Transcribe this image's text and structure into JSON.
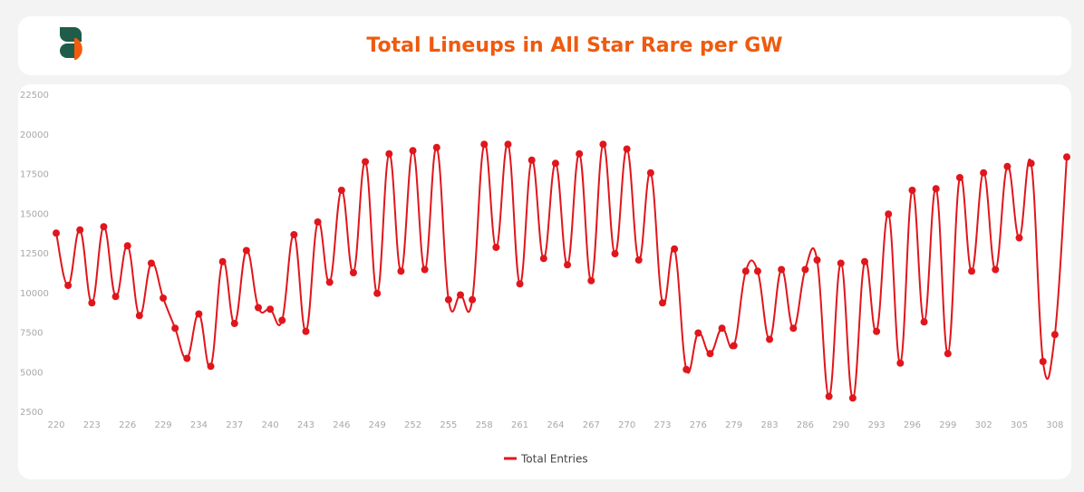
{
  "chart_data": {
    "type": "line",
    "title": "Total Lineups in All Star Rare per GW",
    "categories": [
      "220",
      null,
      null,
      "223",
      null,
      null,
      "226",
      null,
      null,
      "229",
      null,
      null,
      "234",
      null,
      null,
      "237",
      null,
      null,
      "240",
      null,
      null,
      "243",
      null,
      null,
      "246",
      null,
      null,
      "249",
      null,
      null,
      "252",
      null,
      null,
      "255",
      null,
      null,
      "258",
      null,
      null,
      "261",
      null,
      null,
      "264",
      null,
      null,
      "267",
      null,
      null,
      "270",
      null,
      null,
      "273",
      null,
      null,
      "276",
      null,
      null,
      "279",
      null,
      null,
      "283",
      null,
      null,
      "286",
      null,
      null,
      "290",
      null,
      null,
      "293",
      null,
      null,
      "296",
      null,
      null,
      "299",
      null,
      null,
      "302",
      null,
      null,
      "305",
      null,
      null,
      "308",
      null
    ],
    "series": [
      {
        "name": "Total Entries",
        "color": "#e0161c",
        "values": [
          13800,
          10500,
          14000,
          9400,
          14200,
          9800,
          13000,
          8600,
          11900,
          9700,
          7800,
          5900,
          8700,
          5400,
          12000,
          8100,
          12700,
          9100,
          9000,
          8300,
          13700,
          7600,
          14500,
          10700,
          16500,
          11300,
          18300,
          10000,
          18800,
          11400,
          19000,
          11500,
          19200,
          9600,
          9900,
          9600,
          19400,
          12900,
          19400,
          10600,
          18400,
          12200,
          18200,
          11800,
          18800,
          10800,
          19400,
          12500,
          19100,
          12100,
          17600,
          9400,
          12800,
          5200,
          7500,
          6200,
          7800,
          6700,
          11400,
          11400,
          7100,
          11500,
          7800,
          11500,
          12100,
          3500,
          11900,
          3400,
          12000,
          7600,
          15000,
          5600,
          16500,
          8200,
          16600,
          6200,
          17300,
          11400,
          17600,
          11500,
          18000,
          13500,
          18200,
          5700,
          7400,
          18600
        ]
      }
    ],
    "ylim": [
      2500,
      22500
    ],
    "yticks": [
      2500,
      5000,
      7500,
      10000,
      12500,
      15000,
      17500,
      20000,
      22500
    ],
    "legend": "bottom"
  }
}
